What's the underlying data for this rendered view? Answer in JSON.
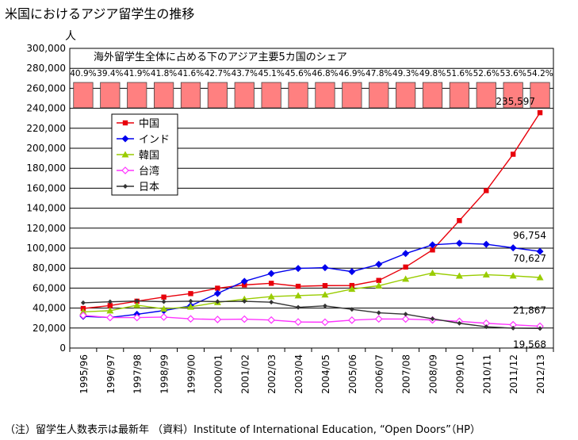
{
  "title": "米国におけるアジア留学生の推移",
  "unit_label": "人",
  "share_title": "海外留学生全体に占める下のアジア主要5カ国のシェア",
  "footer": "（注）留学生人数表示は最新年 （資料）Institute of International Education, “Open Doors”（HP）",
  "colors": {
    "china": "#e8000b",
    "india": "#0000ee",
    "korea": "#99cc00",
    "taiwan": "#ff33ff",
    "japan": "#333333",
    "share_bar": "#ff8080"
  },
  "chart_data": {
    "type": "line",
    "categories": [
      "1995/96",
      "1996/97",
      "1997/98",
      "1998/99",
      "1999/00",
      "2000/01",
      "2001/02",
      "2002/03",
      "2003/04",
      "2004/05",
      "2005/06",
      "2006/07",
      "2007/08",
      "2008/09",
      "2009/10",
      "2010/11",
      "2011/12",
      "2012/13"
    ],
    "ylim": [
      0,
      300000
    ],
    "yticks": [
      0,
      20000,
      40000,
      60000,
      80000,
      100000,
      120000,
      140000,
      160000,
      180000,
      200000,
      220000,
      240000,
      260000,
      280000,
      300000
    ],
    "ytick_labels": [
      "0",
      "20,000",
      "40,000",
      "60,000",
      "80,000",
      "100,000",
      "120,000",
      "140,000",
      "160,000",
      "180,000",
      "200,000",
      "220,000",
      "240,000",
      "260,000",
      "280,000",
      "300,000"
    ],
    "grid": true,
    "legend_position": "upper-left",
    "share_labels": [
      "40.9%",
      "39.4%",
      "41.9%",
      "41.8%",
      "41.6%",
      "42.7%",
      "43.7%",
      "45.1%",
      "45.6%",
      "46.8%",
      "46.9%",
      "47.8%",
      "49.3%",
      "49.8%",
      "51.6%",
      "52.6%",
      "53.6%",
      "54.2%"
    ],
    "series": [
      {
        "name": "中国",
        "key": "china",
        "marker": "square",
        "values": [
          39600,
          42500,
          46900,
          51000,
          54500,
          59900,
          63200,
          64800,
          61800,
          62500,
          62600,
          67700,
          81100,
          98200,
          127600,
          157600,
          194000,
          235597
        ]
      },
      {
        "name": "インド",
        "key": "india",
        "marker": "diamond",
        "values": [
          31700,
          30600,
          33800,
          37500,
          42300,
          54700,
          66800,
          74600,
          79700,
          80500,
          76500,
          83800,
          94600,
          103300,
          104900,
          103900,
          100300,
          96754
        ]
      },
      {
        "name": "韓国",
        "key": "korea",
        "marker": "triangle",
        "values": [
          36200,
          37400,
          42900,
          39200,
          41200,
          45700,
          49000,
          51500,
          52500,
          53400,
          59000,
          62400,
          69100,
          75100,
          72200,
          73400,
          72300,
          70627
        ]
      },
      {
        "name": "台湾",
        "key": "taiwan",
        "marker": "open-diamond",
        "values": [
          32700,
          30500,
          30500,
          31000,
          29200,
          28600,
          28900,
          28000,
          26100,
          25900,
          27900,
          29100,
          29000,
          28100,
          26700,
          24800,
          23300,
          21867
        ]
      },
      {
        "name": "日本",
        "key": "japan",
        "marker": "small-diamond",
        "values": [
          45300,
          46300,
          47100,
          46400,
          46900,
          46500,
          46800,
          45900,
          40800,
          42200,
          38700,
          35300,
          33900,
          29300,
          24800,
          21300,
          19900,
          19568
        ]
      }
    ],
    "annotations": [
      {
        "series": "china",
        "text": "235,597"
      },
      {
        "series": "india",
        "text": "96,754"
      },
      {
        "series": "korea",
        "text": "70,627"
      },
      {
        "series": "taiwan",
        "text": "21,867"
      },
      {
        "series": "japan",
        "text": "19,568"
      }
    ]
  }
}
